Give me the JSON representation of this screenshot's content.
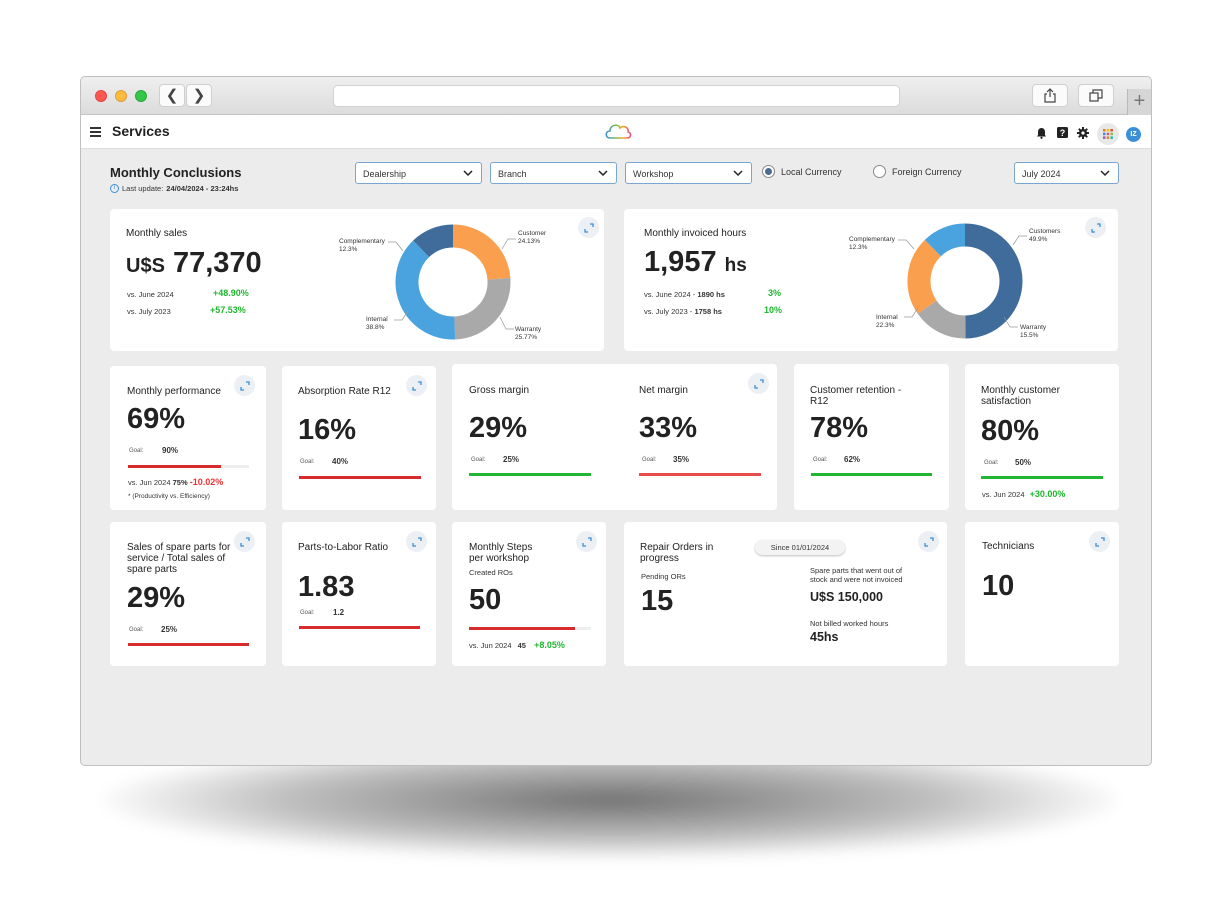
{
  "app": {
    "title": "Services"
  },
  "header": {
    "title": "Monthly Conclusions",
    "update_label": "Last update:",
    "update_value": "24/04/2024 - 23:24hs"
  },
  "filters": {
    "dealership": "Dealership",
    "branch": "Branch",
    "workshop": "Workshop",
    "local_currency": "Local Currency",
    "foreign_currency": "Foreign Currency",
    "period": "July 2024"
  },
  "monthly_sales": {
    "title": "Monthly sales",
    "currency": "U$S",
    "value": "77,370",
    "cmp1_label": "vs. June 2024",
    "cmp1_value": "+48.90%",
    "cmp2_label": "vs. July 2023",
    "cmp2_value": "+57.53%",
    "labels": {
      "customer": "Customer",
      "customer_v": "24.13%",
      "warranty": "Warranty",
      "warranty_v": "25.77%",
      "internal": "Internal",
      "internal_v": "38.8%",
      "complementary": "Complementary",
      "complementary_v": "12.3%"
    }
  },
  "invoiced_hours": {
    "title": "Monthly invoiced hours",
    "value": "1,957",
    "unit": "hs",
    "cmp1_label": "vs. June 2024 -",
    "cmp1_hours": "1890 hs",
    "cmp1_value": "3%",
    "cmp2_label": "vs. July 2023 -",
    "cmp2_hours": "1758 hs",
    "cmp2_value": "10%",
    "labels": {
      "customers": "Customers",
      "customers_v": "49.9%",
      "warranty": "Warranty",
      "warranty_v": "15.5%",
      "internal": "Internal",
      "internal_v": "22.3%",
      "complementary": "Complementary",
      "complementary_v": "12.3%"
    }
  },
  "chart_data": [
    {
      "type": "pie",
      "title": "Monthly sales",
      "categories": [
        "Customer",
        "Warranty",
        "Internal",
        "Complementary"
      ],
      "values": [
        24.13,
        25.77,
        38.8,
        12.3
      ],
      "colors": [
        "#fa9f4d",
        "#a9a9a9",
        "#4aa3de",
        "#3f6c9b"
      ]
    },
    {
      "type": "pie",
      "title": "Monthly invoiced hours",
      "categories": [
        "Customers",
        "Warranty",
        "Internal",
        "Complementary"
      ],
      "values": [
        49.9,
        15.5,
        22.3,
        12.3
      ],
      "colors": [
        "#3f6c9b",
        "#a9a9a9",
        "#fa9f4d",
        "#4aa3de"
      ]
    }
  ],
  "performance": {
    "title": "Monthly performance",
    "value": "69%",
    "goal_label": "Goal:",
    "goal": "90%",
    "cmp_label": "vs. Jun 2024",
    "cmp_prev": "75%",
    "cmp_value": "-10.02%",
    "note": "* (Productivity vs. Efficiency)",
    "progress": 0.77
  },
  "absorption": {
    "title": "Absorption Rate R12",
    "value": "16%",
    "goal_label": "Goal:",
    "goal": "40%",
    "progress": 1.0
  },
  "gross_margin": {
    "title": "Gross margin",
    "value": "29%",
    "goal_label": "Goal:",
    "goal": "25%",
    "progress": 1.0
  },
  "net_margin": {
    "title": "Net margin",
    "value": "33%",
    "goal_label": "Goal:",
    "goal": "35%",
    "progress": 1.0
  },
  "retention": {
    "title": "Customer retention - R12",
    "value": "78%",
    "goal_label": "Goal:",
    "goal": "62%",
    "progress": 1.0
  },
  "satisfaction": {
    "title": "Monthly customer satisfaction",
    "value": "80%",
    "goal_label": "Goal:",
    "goal": "50%",
    "cmp_label": "vs. Jun 2024",
    "cmp_value": "+30.00%",
    "progress": 1.0
  },
  "spare_parts": {
    "title": "Sales of spare parts for service / Total sales of spare parts",
    "value": "29%",
    "goal_label": "Goal:",
    "goal": "25%",
    "progress": 1.0
  },
  "parts_labor": {
    "title": "Parts-to-Labor Ratio",
    "value": "1.83",
    "goal_label": "Goal:",
    "goal": "1.2",
    "progress": 1.0
  },
  "steps": {
    "title": "Monthly Steps per workshop",
    "subtitle": "Created ROs",
    "value": "50",
    "cmp_label": "vs. Jun 2024",
    "cmp_prev": "45",
    "cmp_value": "+8.05%",
    "progress": 0.87
  },
  "repair_orders": {
    "title": "Repair Orders in progress",
    "since": "Since 01/01/2024",
    "pending_label": "Pending ORs",
    "pending": "15",
    "spare_label": "Spare parts that went out of stock and were not invoiced",
    "spare_value": "U$S 150,000",
    "unbilled_label": "Not billed worked hours",
    "unbilled_value": "45hs"
  },
  "technicians": {
    "title": "Technicians",
    "value": "10"
  },
  "colors": {
    "red": "#d92b2b",
    "green": "#22b631",
    "accent": "#3b8fd9"
  }
}
